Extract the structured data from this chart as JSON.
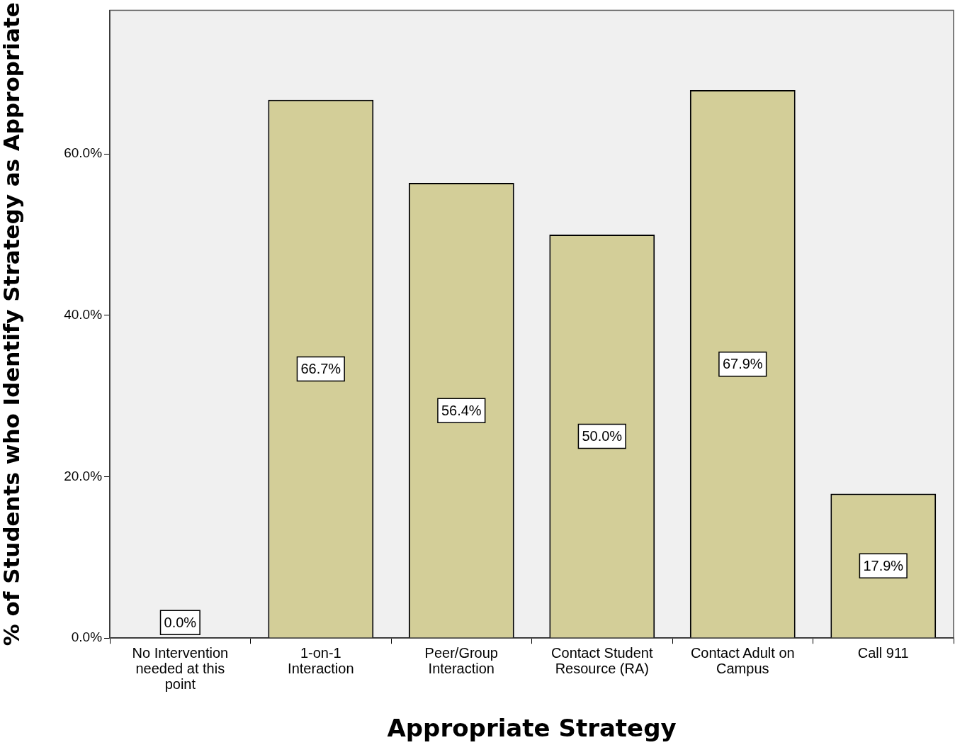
{
  "chart_data": {
    "type": "bar",
    "xlabel": "Appropriate Strategy",
    "ylabel": "% of Students who Identify Strategy as Appropriate",
    "categories": [
      "No Intervention needed at this point",
      "1-on-1 Interaction",
      "Peer/Group Interaction",
      "Contact Student Resource (RA)",
      "Contact Adult on Campus",
      "Call 911"
    ],
    "values": [
      0,
      66.7,
      56.4,
      50.0,
      67.9,
      17.9
    ],
    "value_labels": [
      "0.0%",
      "66.7%",
      "56.4%",
      "50.0%",
      "67.9%",
      "17.9%"
    ],
    "color": "#d3ce98",
    "ylim": [
      0,
      77.8
    ],
    "yticks": [
      {
        "value": 0,
        "label": "0.0%"
      },
      {
        "value": 20,
        "label": "20.0%"
      },
      {
        "value": 40,
        "label": "40.0%"
      },
      {
        "value": 60,
        "label": "60.0%"
      }
    ],
    "grid": false,
    "legend": false
  }
}
